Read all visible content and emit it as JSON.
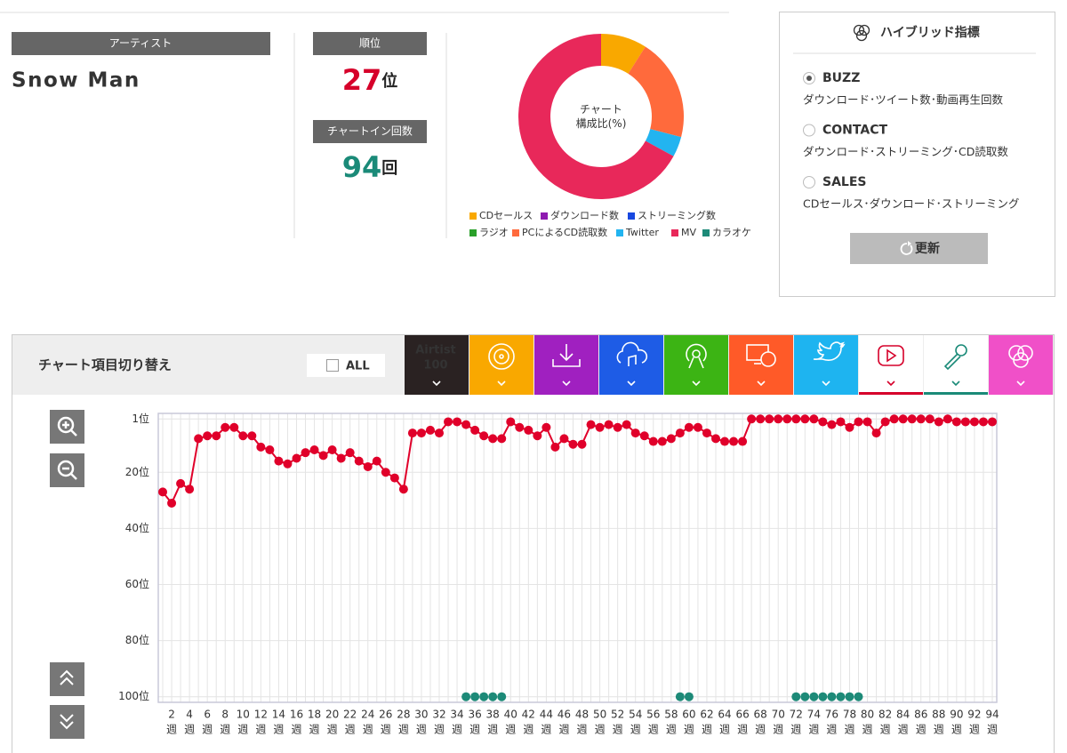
{
  "artist": {
    "header": "アーティスト",
    "name": "Snow Man"
  },
  "rank": {
    "header": "順位",
    "value": 27,
    "unit": "位"
  },
  "chart_in": {
    "header": "チャートイン回数",
    "value": 94,
    "unit": "回"
  },
  "hybrid": {
    "title": "ハイブリッド指標",
    "selected": 0,
    "options": [
      {
        "label": "BUZZ",
        "description": "ダウンロード･ツイート数･動画再生回数"
      },
      {
        "label": "CONTACT",
        "description": "ダウンロード･ストリーミング･CD読取数"
      },
      {
        "label": "SALES",
        "description": "CDセールス･ダウンロード･ストリーミング"
      }
    ],
    "button": "更新"
  },
  "chart_switch": {
    "title": "チャート項目切り替え",
    "all": "ALL",
    "tab_label": "Airtist",
    "tab_sub": "100"
  },
  "chart_data": [
    {
      "type": "donut",
      "title": "チャート\n構成比(%)",
      "categories": [
        "CDセールス",
        "ダウンロード数",
        "ストリーミング数",
        "ラジオ",
        "PCによるCD読取数",
        "Twitter",
        "MV",
        "カラオケ"
      ],
      "values": [
        9,
        0,
        0,
        0,
        20,
        4,
        67,
        0
      ],
      "colors": [
        "#f9a800",
        "#8e1ab0",
        "#1848e0",
        "#2aa02a",
        "#ff6a3c",
        "#22b4f0",
        "#e8285a",
        "#1d8a78"
      ]
    },
    {
      "type": "line",
      "x": [
        1,
        2,
        3,
        4,
        5,
        6,
        7,
        8,
        9,
        10,
        11,
        12,
        13,
        14,
        15,
        16,
        17,
        18,
        19,
        20,
        21,
        22,
        23,
        24,
        25,
        26,
        27,
        28,
        29,
        30,
        31,
        32,
        33,
        34,
        35,
        36,
        37,
        38,
        39,
        40,
        41,
        42,
        43,
        44,
        45,
        46,
        47,
        48,
        49,
        50,
        51,
        52,
        53,
        54,
        55,
        56,
        57,
        58,
        59,
        60,
        61,
        62,
        63,
        64,
        65,
        66,
        67,
        68,
        69,
        70,
        71,
        72,
        73,
        74,
        75,
        76,
        77,
        78,
        79,
        80,
        81,
        82,
        83,
        84,
        85,
        86,
        87,
        88,
        89,
        90,
        91,
        92,
        93,
        94
      ],
      "x_unit": "週",
      "xlim": [
        0.5,
        94.5
      ],
      "xticks": [
        2,
        4,
        6,
        8,
        10,
        12,
        14,
        16,
        18,
        20,
        22,
        24,
        26,
        28,
        30,
        32,
        34,
        36,
        38,
        40,
        42,
        44,
        46,
        48,
        50,
        52,
        54,
        56,
        58,
        60,
        62,
        64,
        66,
        68,
        70,
        72,
        74,
        76,
        78,
        80,
        82,
        84,
        86,
        88,
        90,
        92,
        94
      ],
      "ylim": [
        -1,
        102
      ],
      "y_inverted": true,
      "yticks": [
        {
          "value": 1,
          "label": "1位"
        },
        {
          "value": 20,
          "label": "20位"
        },
        {
          "value": 40,
          "label": "40位"
        },
        {
          "value": 60,
          "label": "60位"
        },
        {
          "value": 80,
          "label": "80位"
        },
        {
          "value": 100,
          "label": "100位"
        }
      ],
      "grid": true,
      "series": [
        {
          "name": "Airtist 100",
          "color": "#e0002a",
          "style": "line",
          "values": [
            27,
            31,
            24,
            26,
            8,
            7,
            7,
            4,
            4,
            7,
            7,
            11,
            12,
            16,
            17,
            15,
            13,
            12,
            14,
            12,
            15,
            13,
            16,
            18,
            16,
            20,
            22,
            26,
            6,
            6,
            5,
            6,
            2,
            2,
            3,
            5,
            7,
            8,
            8,
            2,
            4,
            5,
            7,
            4,
            11,
            8,
            10,
            10,
            3,
            4,
            3,
            4,
            3,
            6,
            7,
            9,
            9,
            8,
            6,
            4,
            4,
            6,
            8,
            9,
            9,
            9,
            1,
            1,
            1,
            1,
            1,
            1,
            1,
            1,
            2,
            3,
            2,
            4,
            2,
            2,
            6,
            2,
            1,
            1,
            1,
            1,
            1,
            2,
            1,
            2,
            2,
            2,
            2,
            2
          ]
        },
        {
          "name": "カラオケ",
          "color": "#1d8a78",
          "style": "dots",
          "values": [
            null,
            null,
            null,
            null,
            null,
            null,
            null,
            null,
            null,
            null,
            null,
            null,
            null,
            null,
            null,
            null,
            null,
            null,
            null,
            null,
            null,
            null,
            null,
            null,
            null,
            null,
            null,
            null,
            null,
            null,
            null,
            null,
            null,
            null,
            100,
            100,
            100,
            100,
            100,
            null,
            null,
            null,
            null,
            null,
            null,
            null,
            null,
            null,
            null,
            null,
            null,
            null,
            null,
            null,
            null,
            null,
            null,
            null,
            100,
            100,
            null,
            null,
            null,
            null,
            null,
            null,
            null,
            null,
            null,
            null,
            null,
            100,
            100,
            100,
            100,
            100,
            100,
            100,
            100,
            null,
            null,
            null,
            null,
            null,
            null,
            null,
            null,
            null,
            null,
            null,
            null,
            null,
            null,
            null
          ]
        }
      ]
    }
  ]
}
